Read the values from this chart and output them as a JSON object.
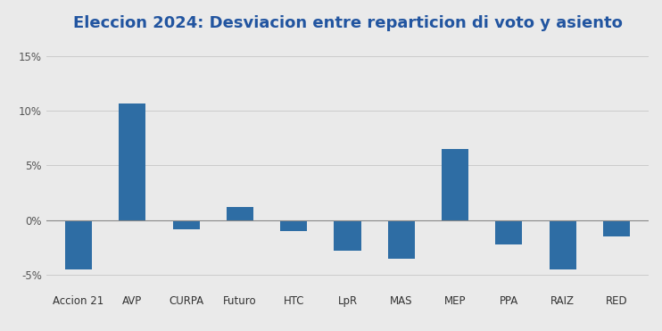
{
  "title": "Eleccion 2024: Desviacion entre reparticion di voto y asiento",
  "categories": [
    "Accion 21",
    "AVP",
    "CURPA",
    "Futuro",
    "HTC",
    "LpR",
    "MAS",
    "MEP",
    "PPA",
    "RAIZ",
    "RED"
  ],
  "values": [
    -4.5,
    10.7,
    -0.8,
    1.2,
    -1.0,
    -2.8,
    -3.5,
    6.5,
    -2.2,
    -4.5,
    -1.5
  ],
  "bar_color": "#2E6DA4",
  "fig_bg_color": "#EAEAEA",
  "plot_bg_color": "#EAEAEA",
  "ylim": [
    -6.5,
    16.5
  ],
  "yticks": [
    -5,
    0,
    5,
    10,
    15
  ],
  "title_color": "#2255A0",
  "title_fontsize": 13,
  "tick_fontsize": 8.5,
  "grid_color": "#CCCCCC",
  "zero_line_color": "#888888",
  "bar_width": 0.5
}
